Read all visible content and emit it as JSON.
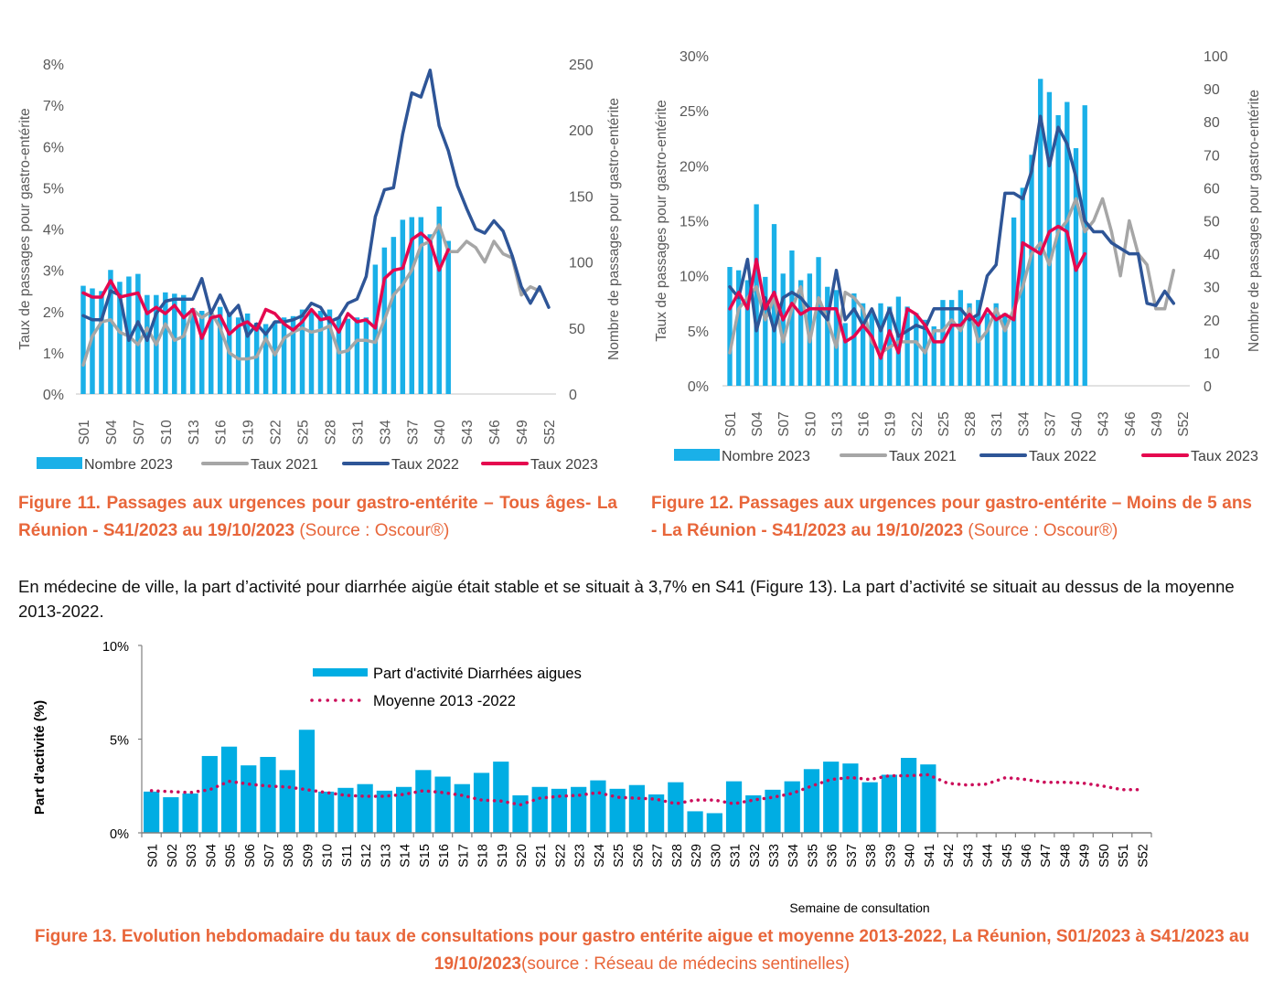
{
  "figure11": {
    "caption_bold": "Figure 11. Passages aux urgences pour gastro-entérite – Tous âges- La Réunion - S41/2023 au 19/10/2023",
    "caption_source": " (Source : Oscour®)"
  },
  "figure12": {
    "caption_bold": "Figure 12. Passages aux urgences pour gastro-entérite  – Moins de 5 ans - La Réunion - S41/2023 au 19/10/2023",
    "caption_source": " (Source : Oscour®)"
  },
  "paragraph": "En médecine de ville, la part d’activité pour diarrhée aigüe était stable et se situait à 3,7% en S41  (Figure 13). La part d’activité se situait au dessus de la moyenne 2013-2022.",
  "figure13": {
    "caption_bold": "Figure 13. Evolution hebdomadaire du taux de consultations pour gastro entérite aigue et moyenne 2013-2022, La Réunion, S01/2023 à S41/2023 au 19/10/2023",
    "caption_source": "(source : Réseau de médecins sentinelles)"
  },
  "colors": {
    "bars": "#1ab0e8",
    "bars13": "#00ade3",
    "taux2021": "#a6a6a6",
    "taux2022": "#2e5597",
    "taux2023": "#e5074f",
    "moyenne": "#cc0e5a",
    "caption": "#e8663a"
  },
  "chart_data": [
    {
      "id": "fig11",
      "type": "bar+line",
      "title": "",
      "ylabel": "Taux de passages pour gastro-entérite",
      "y2label": "Nombre de passages pour gastro-entérite",
      "ylim": [
        0,
        8
      ],
      "yticks": [
        "0%",
        "1%",
        "2%",
        "3%",
        "4%",
        "5%",
        "6%",
        "7%",
        "8%"
      ],
      "y2lim": [
        0,
        250
      ],
      "y2ticks": [
        "0",
        "50",
        "100",
        "150",
        "200",
        "250"
      ],
      "xtick_labels": [
        "S01",
        "S04",
        "S07",
        "S10",
        "S13",
        "S16",
        "S19",
        "S22",
        "S25",
        "S28",
        "S31",
        "S34",
        "S37",
        "S40",
        "S43",
        "S46",
        "S49",
        "S52"
      ],
      "legend": [
        "Nombre 2023",
        "Taux 2021",
        "Taux 2022",
        "Taux 2023"
      ],
      "legend_position": "bottom",
      "bars": {
        "name": "Nombre 2023",
        "axis": "right",
        "values": [
          82,
          80,
          78,
          94,
          85,
          89,
          91,
          75,
          75,
          77,
          76,
          75,
          65,
          63,
          62,
          66,
          62,
          58,
          61,
          54,
          53,
          55,
          58,
          59,
          64,
          64,
          63,
          64,
          58,
          57,
          58,
          58,
          98,
          111,
          119,
          132,
          134,
          134,
          121,
          142,
          116
        ]
      },
      "series": [
        {
          "name": "Taux 2021",
          "values": [
            0.7,
            1.4,
            1.75,
            1.8,
            1.5,
            1.4,
            1.2,
            1.6,
            1.2,
            1.7,
            1.3,
            1.4,
            2.05,
            1.85,
            2.0,
            1.6,
            1.0,
            0.85,
            0.85,
            0.9,
            1.35,
            0.95,
            1.35,
            1.5,
            1.6,
            1.5,
            1.55,
            1.65,
            1.0,
            1.05,
            1.3,
            1.3,
            1.25,
            1.8,
            2.4,
            2.65,
            3.0,
            3.6,
            3.7,
            4.1,
            3.45,
            3.45,
            3.7,
            3.55,
            3.2,
            3.7,
            3.4,
            3.3,
            2.4,
            2.6,
            2.5,
            null
          ]
        },
        {
          "name": "Taux 2022",
          "values": [
            1.9,
            1.8,
            1.8,
            2.5,
            2.4,
            1.3,
            1.75,
            1.3,
            1.95,
            2.25,
            2.3,
            2.3,
            2.3,
            2.8,
            1.95,
            2.4,
            1.9,
            2.15,
            1.4,
            1.7,
            1.45,
            1.75,
            1.75,
            1.8,
            1.9,
            2.2,
            2.1,
            1.75,
            1.85,
            2.2,
            2.3,
            2.85,
            4.3,
            4.95,
            5.0,
            6.3,
            7.3,
            7.2,
            7.85,
            6.5,
            5.9,
            5.05,
            4.5,
            4.0,
            3.9,
            4.2,
            3.95,
            3.35,
            2.6,
            2.2,
            2.6,
            2.1
          ]
        },
        {
          "name": "Taux 2023",
          "values": [
            2.45,
            2.35,
            2.35,
            2.75,
            2.35,
            2.4,
            2.45,
            1.95,
            2.1,
            1.95,
            2.15,
            1.85,
            2.05,
            1.35,
            1.85,
            1.9,
            1.45,
            1.65,
            1.75,
            1.55,
            2.05,
            1.95,
            1.7,
            1.55,
            1.75,
            2.05,
            1.8,
            1.85,
            1.5,
            1.95,
            1.75,
            1.8,
            1.6,
            2.8,
            3.0,
            3.05,
            3.75,
            3.9,
            3.7,
            3.0,
            3.5
          ]
        }
      ]
    },
    {
      "id": "fig12",
      "type": "bar+line",
      "title": "",
      "ylabel": "Taux de passages pour gastro-entérite",
      "y2label": "Nombre de passages pour gastro-entérite",
      "ylim": [
        0,
        30
      ],
      "yticks": [
        "0%",
        "5%",
        "10%",
        "15%",
        "20%",
        "25%",
        "30%"
      ],
      "y2lim": [
        0,
        100
      ],
      "y2ticks": [
        "0",
        "10",
        "20",
        "30",
        "40",
        "50",
        "60",
        "70",
        "80",
        "90",
        "100"
      ],
      "xtick_labels": [
        "S01",
        "S04",
        "S07",
        "S10",
        "S13",
        "S16",
        "S19",
        "S22",
        "S25",
        "S28",
        "S31",
        "S34",
        "S37",
        "S40",
        "S43",
        "S46",
        "S49",
        "S52"
      ],
      "legend": [
        "Nombre 2023",
        "Taux 2021",
        "Taux 2022",
        "Taux 2023"
      ],
      "legend_position": "bottom",
      "bars": {
        "name": "Nombre 2023",
        "axis": "right",
        "values": [
          36,
          35,
          32,
          55,
          33,
          49,
          34,
          41,
          32,
          34,
          39,
          30,
          29,
          19,
          28,
          25,
          22,
          25,
          24,
          27,
          24,
          22,
          20,
          18,
          26,
          26,
          29,
          25,
          26,
          22,
          25,
          22,
          51,
          60,
          70,
          93,
          89,
          82,
          86,
          72,
          85
        ]
      },
      "series": [
        {
          "name": "Taux 2021",
          "values": [
            3,
            7,
            8,
            9,
            6,
            8,
            4,
            7,
            9,
            4,
            8,
            6,
            3.5,
            8.5,
            8,
            7,
            4,
            3,
            3.5,
            4,
            4,
            4,
            3,
            5,
            5,
            6,
            5,
            7,
            4,
            5,
            7,
            5,
            7,
            9,
            12,
            13,
            11,
            14,
            15,
            17,
            14,
            15,
            17,
            14,
            10,
            15,
            12,
            11,
            7,
            7,
            10.5,
            null
          ]
        },
        {
          "name": "Taux 2022",
          "values": [
            9,
            8,
            11.5,
            5,
            8,
            5,
            8,
            8.5,
            8,
            7,
            7,
            6,
            10.5,
            6,
            7,
            5.5,
            7,
            5,
            7,
            4.5,
            5,
            5.5,
            5.2,
            7,
            7,
            7,
            7,
            6,
            6.5,
            10,
            11,
            17.5,
            17.5,
            17,
            19.5,
            24.5,
            20,
            23.5,
            22,
            19,
            15,
            14,
            14,
            13,
            12.5,
            12,
            12,
            7.5,
            7.3,
            8.6,
            7.5,
            null
          ]
        },
        {
          "name": "Taux 2023",
          "values": [
            7,
            8.5,
            7,
            11.5,
            7,
            8.5,
            6,
            7.5,
            6.5,
            7,
            7,
            7,
            7,
            4,
            4.5,
            5.5,
            4.5,
            2.5,
            5,
            3,
            7,
            6.5,
            5.5,
            4,
            4,
            5.5,
            5.5,
            6.5,
            5.5,
            7,
            6,
            6.5,
            6,
            13,
            12.5,
            12,
            14,
            14.5,
            14,
            10.5,
            12
          ]
        }
      ]
    },
    {
      "id": "fig13",
      "type": "bar+line",
      "title": "",
      "ylabel": "Part d'activité (%)",
      "xlabel": "Semaine de consultation",
      "ylim": [
        0,
        10
      ],
      "yticks": [
        "0%",
        "5%",
        "10%"
      ],
      "categories": [
        "S01",
        "S02",
        "S03",
        "S04",
        "S05",
        "S06",
        "S07",
        "S08",
        "S09",
        "S10",
        "S11",
        "S12",
        "S13",
        "S14",
        "S15",
        "S16",
        "S17",
        "S18",
        "S19",
        "S20",
        "S21",
        "S22",
        "S23",
        "S24",
        "S25",
        "S26",
        "S27",
        "S28",
        "S29",
        "S30",
        "S31",
        "S32",
        "S33",
        "S34",
        "S35",
        "S36",
        "S37",
        "S38",
        "S39",
        "S40",
        "S41",
        "S42",
        "S43",
        "S44",
        "S45",
        "S46",
        "S47",
        "S48",
        "S49",
        "S50",
        "S51",
        "S52"
      ],
      "legend": [
        "Part d'activité Diarrhées aigues",
        "Moyenne 2013 -2022"
      ],
      "legend_position": "top-left-inside",
      "bars": {
        "name": "Part d'activité Diarrhées aigues",
        "values": [
          2.2,
          1.9,
          2.1,
          4.1,
          4.6,
          3.6,
          4.05,
          3.35,
          5.5,
          2.2,
          2.4,
          2.6,
          2.25,
          2.45,
          3.35,
          3.0,
          2.6,
          3.2,
          3.8,
          2.0,
          2.45,
          2.35,
          2.45,
          2.8,
          2.35,
          2.55,
          2.05,
          2.7,
          1.15,
          1.05,
          2.75,
          2.0,
          2.3,
          2.75,
          3.4,
          3.8,
          3.7,
          2.7,
          3.1,
          4.0,
          3.65
        ]
      },
      "line": {
        "name": "Moyenne 2013 -2022",
        "values": [
          2.25,
          2.2,
          2.15,
          2.3,
          2.75,
          2.6,
          2.5,
          2.45,
          2.3,
          2.15,
          2.0,
          1.95,
          1.95,
          2.05,
          2.25,
          2.15,
          2.0,
          1.75,
          1.7,
          1.5,
          1.85,
          1.95,
          2.0,
          2.15,
          1.9,
          1.85,
          1.8,
          1.55,
          1.75,
          1.75,
          1.55,
          1.75,
          1.9,
          2.1,
          2.5,
          2.85,
          2.95,
          2.85,
          3.05,
          3.05,
          3.1,
          2.65,
          2.55,
          2.6,
          2.95,
          2.85,
          2.7,
          2.7,
          2.65,
          2.5,
          2.3,
          2.3
        ]
      }
    }
  ]
}
